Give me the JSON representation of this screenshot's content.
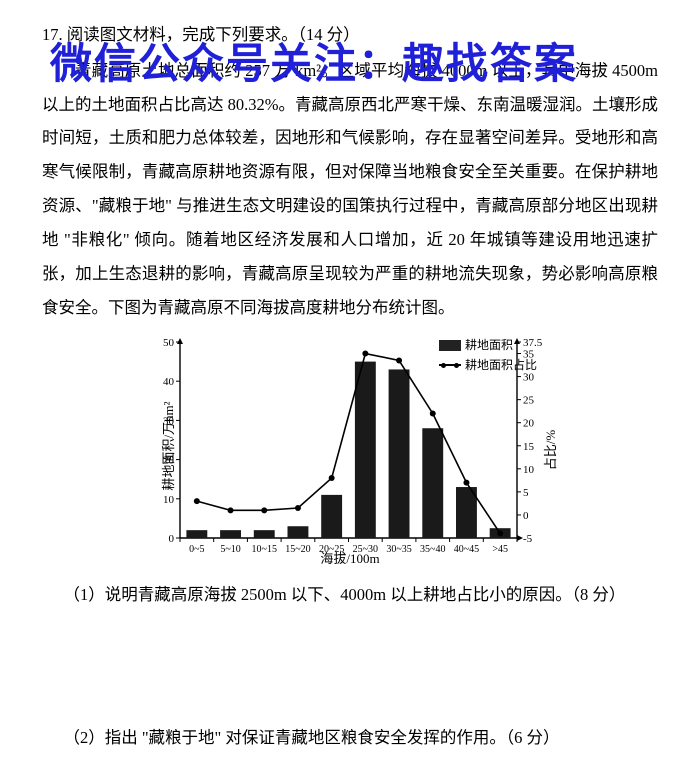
{
  "watermark": "微信公众号关注：趣找答案",
  "question_number": "17. ",
  "question_stem": "阅读图文材料，完成下列要求。（14 分）",
  "paragraph": "青藏高原土地总面积约 257 万 km²。区域平均海拔 4000m 以上，其中海拔 4500m 以上的土地面积占比高达 80.32%。青藏高原西北严寒干燥、东南温暖湿润。土壤形成时间短，土质和肥力总体较差，因地形和气候影响，存在显著空间差异。受地形和高寒气候限制，青藏高原耕地资源有限，但对保障当地粮食安全至关重要。在保护耕地资源、\"藏粮于地\" 与推进生态文明建设的国策执行过程中，青藏高原部分地区出现耕地 \"非粮化\" 倾向。随着地区经济发展和人口增加，近 20 年城镇等建设用地迅速扩张，加上生态退耕的影响，青藏高原呈现较为严重的耕地流失现象，势必影响高原粮食安全。下图为青藏高原不同海拔高度耕地分布统计图。",
  "sub_q1": "（1）说明青藏高原海拔 2500m 以下、4000m 以上耕地占比小的原因。（8 分）",
  "sub_q2": "（2）指出 \"藏粮于地\" 对保证青藏地区粮食安全发挥的作用。（6 分）",
  "chart": {
    "type": "bar+line",
    "categories": [
      "0~5",
      "5~10",
      "10~15",
      "15~20",
      "20~25",
      "25~30",
      "30~35",
      "35~40",
      "40~45",
      ">45"
    ],
    "bar_values": [
      2,
      2,
      2,
      3,
      11,
      45,
      43,
      28,
      13,
      2.5
    ],
    "line_values": [
      3,
      1,
      1,
      1.5,
      8,
      35,
      33.5,
      22,
      7,
      -4
    ],
    "y_left": {
      "label": "耕地面积/万hm²",
      "min": 0,
      "max": 50,
      "ticks": [
        0,
        10,
        20,
        30,
        40,
        50
      ]
    },
    "y_right": {
      "label": "占比/%",
      "min": -5,
      "max": 37.5,
      "ticks": [
        -5,
        0,
        5,
        10,
        15,
        20,
        25,
        30,
        35,
        37.5
      ]
    },
    "x_label": "海拔/100m",
    "legend": {
      "bar": "耕地面积",
      "line": "耕地面积占比"
    },
    "colors": {
      "bar": "#1a1a1a",
      "line": "#000000",
      "bg": "#ffffff",
      "axis": "#000000"
    },
    "bar_width": 0.62,
    "marker": "circle",
    "title_fontsize": 13,
    "tick_fontsize": 11
  }
}
